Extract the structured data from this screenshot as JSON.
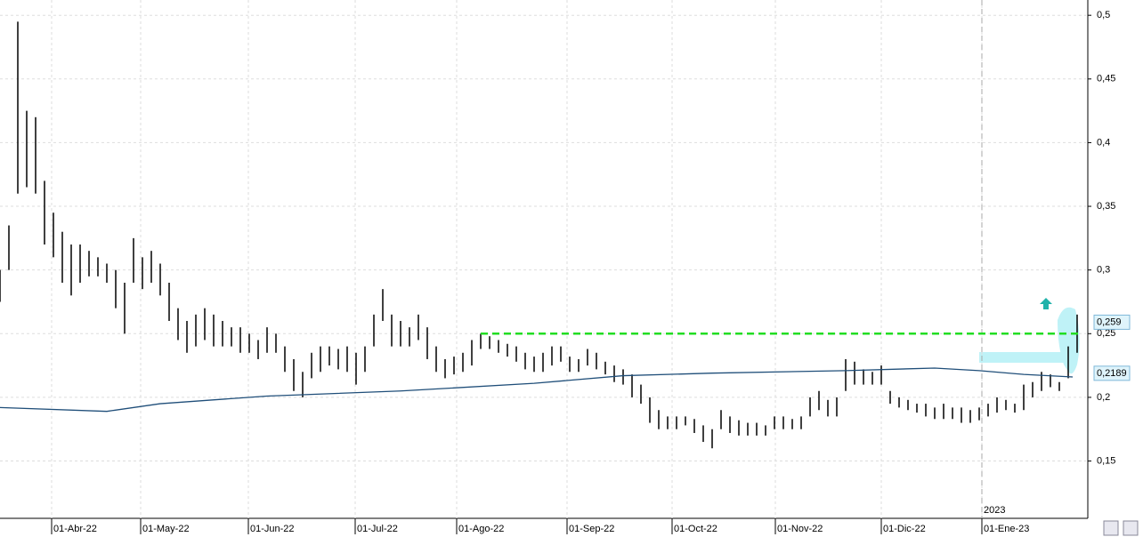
{
  "chart_data": {
    "type": "hilo",
    "color": "#000000",
    "x": [
      0,
      2,
      4,
      6,
      8,
      10,
      12,
      14,
      16,
      18,
      20,
      22,
      24,
      26,
      28,
      30,
      32,
      34,
      36,
      38,
      40,
      42,
      44,
      46,
      48,
      50,
      52,
      54,
      56,
      58,
      60,
      62,
      64,
      66,
      68,
      70,
      72,
      74,
      76,
      78,
      80,
      82,
      84,
      86,
      88,
      90,
      92,
      94,
      96,
      98,
      100,
      102,
      104,
      106,
      108,
      110,
      112,
      114,
      116,
      118,
      120,
      122,
      124,
      126,
      128,
      130,
      132,
      134,
      136,
      138,
      140,
      142,
      144,
      146,
      148,
      150,
      152,
      154,
      156,
      158,
      160,
      162,
      164,
      166,
      168,
      170,
      172,
      174,
      176,
      178,
      180,
      182,
      184,
      186,
      188,
      190,
      192,
      194,
      196,
      198,
      200,
      202,
      204,
      206,
      208,
      210,
      212,
      214,
      216,
      218,
      220,
      222,
      224,
      226,
      228,
      230,
      232,
      234,
      236,
      238,
      240,
      242
    ],
    "high": [
      0.3,
      0.335,
      0.495,
      0.425,
      0.42,
      0.37,
      0.345,
      0.33,
      0.32,
      0.32,
      0.315,
      0.31,
      0.305,
      0.3,
      0.29,
      0.325,
      0.31,
      0.315,
      0.305,
      0.29,
      0.27,
      0.26,
      0.265,
      0.27,
      0.265,
      0.26,
      0.255,
      0.255,
      0.25,
      0.245,
      0.255,
      0.25,
      0.24,
      0.23,
      0.22,
      0.235,
      0.24,
      0.24,
      0.238,
      0.24,
      0.235,
      0.24,
      0.265,
      0.285,
      0.265,
      0.26,
      0.255,
      0.265,
      0.255,
      0.24,
      0.23,
      0.232,
      0.235,
      0.245,
      0.25,
      0.248,
      0.245,
      0.242,
      0.24,
      0.235,
      0.232,
      0.235,
      0.24,
      0.24,
      0.232,
      0.23,
      0.238,
      0.235,
      0.228,
      0.225,
      0.222,
      0.218,
      0.21,
      0.2,
      0.19,
      0.185,
      0.185,
      0.185,
      0.183,
      0.178,
      0.175,
      0.19,
      0.185,
      0.182,
      0.18,
      0.18,
      0.178,
      0.185,
      0.185,
      0.183,
      0.185,
      0.2,
      0.205,
      0.198,
      0.2,
      0.23,
      0.228,
      0.222,
      0.22,
      0.225,
      0.205,
      0.2,
      0.198,
      0.195,
      0.195,
      0.192,
      0.195,
      0.192,
      0.192,
      0.19,
      0.192,
      0.195,
      0.2,
      0.198,
      0.195,
      0.21,
      0.212,
      0.22,
      0.218,
      0.212,
      0.24,
      0.265
    ],
    "low": [
      0.275,
      0.3,
      0.36,
      0.365,
      0.36,
      0.32,
      0.31,
      0.29,
      0.28,
      0.29,
      0.295,
      0.295,
      0.29,
      0.27,
      0.25,
      0.29,
      0.285,
      0.29,
      0.28,
      0.26,
      0.245,
      0.235,
      0.24,
      0.245,
      0.24,
      0.24,
      0.24,
      0.235,
      0.235,
      0.23,
      0.235,
      0.235,
      0.22,
      0.205,
      0.2,
      0.215,
      0.22,
      0.225,
      0.222,
      0.22,
      0.21,
      0.22,
      0.24,
      0.26,
      0.24,
      0.24,
      0.24,
      0.245,
      0.23,
      0.22,
      0.215,
      0.218,
      0.22,
      0.225,
      0.238,
      0.238,
      0.235,
      0.232,
      0.228,
      0.222,
      0.22,
      0.22,
      0.225,
      0.228,
      0.22,
      0.22,
      0.225,
      0.222,
      0.218,
      0.212,
      0.21,
      0.2,
      0.195,
      0.18,
      0.175,
      0.175,
      0.175,
      0.178,
      0.172,
      0.165,
      0.16,
      0.175,
      0.172,
      0.17,
      0.17,
      0.17,
      0.17,
      0.175,
      0.175,
      0.175,
      0.175,
      0.185,
      0.19,
      0.185,
      0.185,
      0.205,
      0.21,
      0.21,
      0.21,
      0.21,
      0.195,
      0.192,
      0.19,
      0.188,
      0.185,
      0.183,
      0.183,
      0.183,
      0.18,
      0.18,
      0.182,
      0.185,
      0.188,
      0.19,
      0.188,
      0.19,
      0.2,
      0.205,
      0.208,
      0.205,
      0.215,
      0.235
    ],
    "ma": {
      "color": "#1f4e79",
      "x": [
        0,
        24,
        36,
        60,
        90,
        120,
        140,
        160,
        190,
        210,
        220,
        230,
        241
      ],
      "values": [
        0.192,
        0.189,
        0.195,
        0.201,
        0.205,
        0.211,
        0.217,
        0.219,
        0.221,
        0.223,
        0.221,
        0.218,
        0.216
      ]
    },
    "level": {
      "value": 0.25,
      "x": [
        108,
        243
      ],
      "color": "#22dd22"
    },
    "price_labels": [
      {
        "value": 0.259,
        "label": "0,259"
      },
      {
        "value": 0.2189,
        "label": "0,2189"
      }
    ],
    "year_marker": {
      "value": 220.6,
      "label": "2023"
    },
    "xlim": [
      0,
      244
    ],
    "ylim": [
      0.105,
      0.512
    ],
    "grid": true,
    "xticks": [
      {
        "value": 11.6,
        "label": "01-Abr-22"
      },
      {
        "value": 31.6,
        "label": "01-May-22"
      },
      {
        "value": 55.8,
        "label": "01-Jun-22"
      },
      {
        "value": 79.8,
        "label": "01-Jul-22"
      },
      {
        "value": 102.6,
        "label": "01-Ago-22"
      },
      {
        "value": 127.4,
        "label": "01-Sep-22"
      },
      {
        "value": 151,
        "label": "01-Oct-22"
      },
      {
        "value": 174.2,
        "label": "01-Nov-22"
      },
      {
        "value": 198,
        "label": "01-Dic-22"
      },
      {
        "value": 220.6,
        "label": "01-Ene-23"
      }
    ],
    "yticks": [
      {
        "value": 0.15,
        "label": "0,15"
      },
      {
        "value": 0.2,
        "label": "0,2"
      },
      {
        "value": 0.25,
        "label": "0,25"
      },
      {
        "value": 0.3,
        "label": "0,3"
      },
      {
        "value": 0.35,
        "label": "0,35"
      },
      {
        "value": 0.4,
        "label": "0,4"
      },
      {
        "value": 0.45,
        "label": "0,45"
      },
      {
        "value": 0.5,
        "label": "0,5"
      }
    ]
  }
}
